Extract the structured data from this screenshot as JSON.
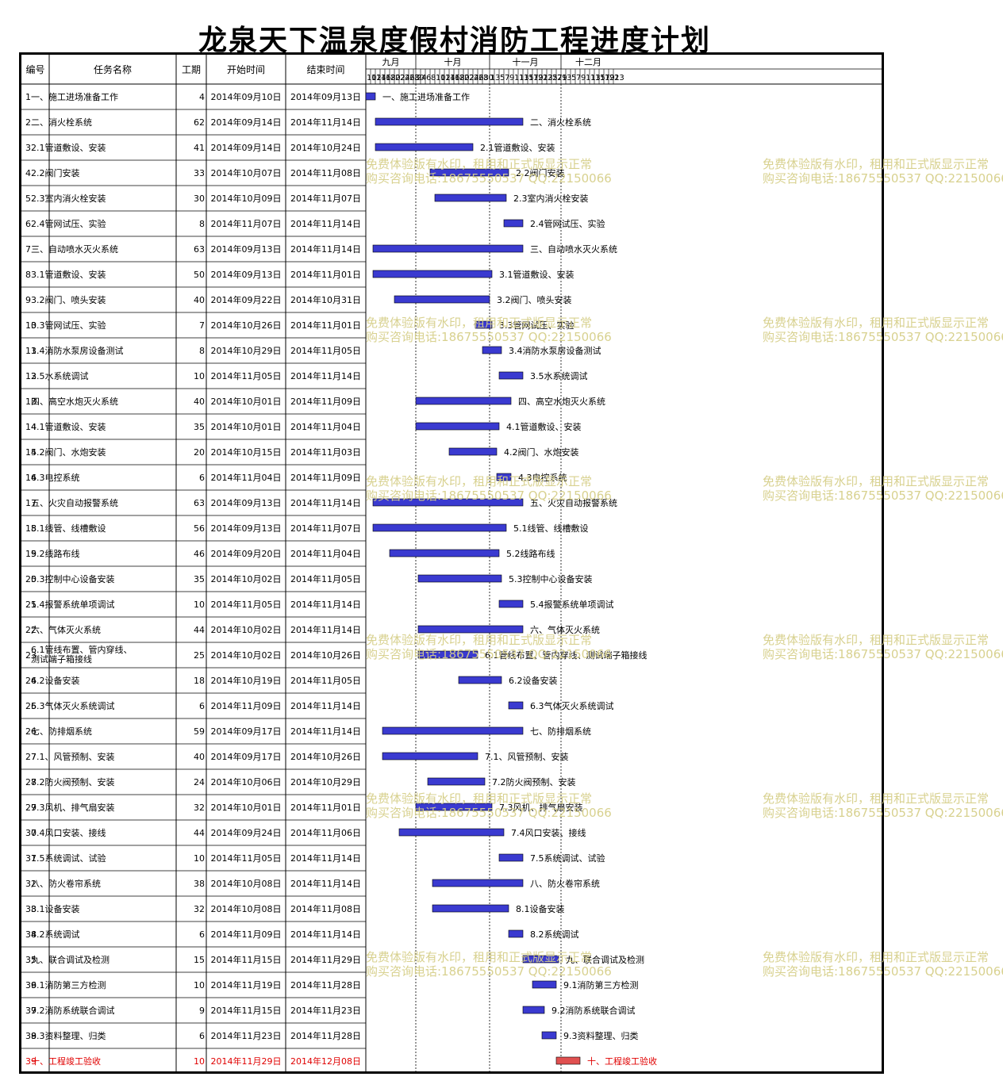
{
  "title": "龙泉天下温泉度假村消防工程进度计划",
  "headers": {
    "id": "编号",
    "name": "任务名称",
    "duration": "工期",
    "start": "开始时间",
    "end": "结束时间"
  },
  "months": [
    "九月",
    "十月",
    "十一月",
    "十二月"
  ],
  "day_ticks": {
    "sep": [
      "10",
      "12",
      "14",
      "16",
      "18",
      "20",
      "22",
      "24",
      "26",
      "28",
      "30"
    ],
    "oct": [
      "2",
      "4",
      "6",
      "8",
      "10",
      "12",
      "14",
      "16",
      "18",
      "20",
      "22",
      "24",
      "26",
      "28",
      "30"
    ],
    "nov": [
      "1",
      "3",
      "5",
      "7",
      "9",
      "11",
      "13",
      "15",
      "17",
      "19",
      "21",
      "23",
      "25",
      "27",
      "29"
    ],
    "dec": [
      "1",
      "3",
      "5",
      "7",
      "9",
      "11",
      "13",
      "15",
      "17",
      "19",
      "21",
      "23"
    ]
  },
  "watermark": {
    "line1": "免费体验版有水印，租用和正式版显示正常",
    "line2": "购买咨询电话:18675550537 QQ:22150066"
  },
  "colors": {
    "bar": "#3a3ad0",
    "bar_highlight": "#e05050",
    "highlight_text": "#e00000",
    "watermark": "#d6cf8a"
  },
  "chart_data": {
    "type": "gantt",
    "title": "龙泉天下温泉度假村消防工程进度计划",
    "x_axis": {
      "start": "2014-09-10",
      "end": "2014-12-23",
      "unit": "day"
    },
    "tasks": [
      {
        "id": "1",
        "name": "一、施工进场准备工作",
        "duration": "4",
        "start": "2014年09月10日",
        "end": "2014年09月13日",
        "s": "2014-09-10",
        "e": "2014-09-13"
      },
      {
        "id": "2",
        "name": "二、消火栓系统",
        "duration": "62",
        "start": "2014年09月14日",
        "end": "2014年11月14日",
        "s": "2014-09-14",
        "e": "2014-11-14"
      },
      {
        "id": "3",
        "name": "2.1管道敷设、安装",
        "duration": "41",
        "start": "2014年09月14日",
        "end": "2014年10月24日",
        "s": "2014-09-14",
        "e": "2014-10-24"
      },
      {
        "id": "4",
        "name": "2.2阀门安装",
        "duration": "33",
        "start": "2014年10月07日",
        "end": "2014年11月08日",
        "s": "2014-10-07",
        "e": "2014-11-08"
      },
      {
        "id": "5",
        "name": "2.3室内消火栓安装",
        "duration": "30",
        "start": "2014年10月09日",
        "end": "2014年11月07日",
        "s": "2014-10-09",
        "e": "2014-11-07"
      },
      {
        "id": "6",
        "name": "2.4管网试压、实验",
        "duration": "8",
        "start": "2014年11月07日",
        "end": "2014年11月14日",
        "s": "2014-11-07",
        "e": "2014-11-14"
      },
      {
        "id": "7",
        "name": "三、自动喷水灭火系统",
        "duration": "63",
        "start": "2014年09月13日",
        "end": "2014年11月14日",
        "s": "2014-09-13",
        "e": "2014-11-14"
      },
      {
        "id": "8",
        "name": "3.1管道敷设、安装",
        "duration": "50",
        "start": "2014年09月13日",
        "end": "2014年11月01日",
        "s": "2014-09-13",
        "e": "2014-11-01"
      },
      {
        "id": "9",
        "name": "3.2阀门、喷头安装",
        "duration": "40",
        "start": "2014年09月22日",
        "end": "2014年10月31日",
        "s": "2014-09-22",
        "e": "2014-10-31"
      },
      {
        "id": "10",
        "name": "3.3管网试压、实验",
        "duration": "7",
        "start": "2014年10月26日",
        "end": "2014年11月01日",
        "s": "2014-10-26",
        "e": "2014-11-01"
      },
      {
        "id": "11",
        "name": "3.4消防水泵房设备测试",
        "duration": "8",
        "start": "2014年10月29日",
        "end": "2014年11月05日",
        "s": "2014-10-29",
        "e": "2014-11-05"
      },
      {
        "id": "12",
        "name": "3.5水系统调试",
        "duration": "10",
        "start": "2014年11月05日",
        "end": "2014年11月14日",
        "s": "2014-11-05",
        "e": "2014-11-14"
      },
      {
        "id": "13",
        "name": "四、高空水炮灭火系统",
        "duration": "40",
        "start": "2014年10月01日",
        "end": "2014年11月09日",
        "s": "2014-10-01",
        "e": "2014-11-09"
      },
      {
        "id": "14",
        "name": "4.1管道敷设、安装",
        "duration": "35",
        "start": "2014年10月01日",
        "end": "2014年11月04日",
        "s": "2014-10-01",
        "e": "2014-11-04"
      },
      {
        "id": "15",
        "name": "4.2阀门、水炮安装",
        "duration": "20",
        "start": "2014年10月15日",
        "end": "2014年11月03日",
        "s": "2014-10-15",
        "e": "2014-11-03"
      },
      {
        "id": "16",
        "name": "4.3电控系统",
        "duration": "6",
        "start": "2014年11月04日",
        "end": "2014年11月09日",
        "s": "2014-11-04",
        "e": "2014-11-09"
      },
      {
        "id": "17",
        "name": "五、火灾自动报警系统",
        "duration": "63",
        "start": "2014年09月13日",
        "end": "2014年11月14日",
        "s": "2014-09-13",
        "e": "2014-11-14"
      },
      {
        "id": "18",
        "name": "5.1线管、线槽敷设",
        "duration": "56",
        "start": "2014年09月13日",
        "end": "2014年11月07日",
        "s": "2014-09-13",
        "e": "2014-11-07"
      },
      {
        "id": "19",
        "name": "5.2线路布线",
        "duration": "46",
        "start": "2014年09月20日",
        "end": "2014年11月04日",
        "s": "2014-09-20",
        "e": "2014-11-04"
      },
      {
        "id": "20",
        "name": "5.3控制中心设备安装",
        "duration": "35",
        "start": "2014年10月02日",
        "end": "2014年11月05日",
        "s": "2014-10-02",
        "e": "2014-11-05"
      },
      {
        "id": "21",
        "name": "5.4报警系统单项调试",
        "duration": "10",
        "start": "2014年11月05日",
        "end": "2014年11月14日",
        "s": "2014-11-05",
        "e": "2014-11-14"
      },
      {
        "id": "22",
        "name": "六、气体灭火系统",
        "duration": "44",
        "start": "2014年10月02日",
        "end": "2014年11月14日",
        "s": "2014-10-02",
        "e": "2014-11-14"
      },
      {
        "id": "23",
        "name": "6.1管线布置、管内穿线、测试端子箱接线",
        "name_line1": "6.1管线布置、管内穿线、",
        "name_line2": "测试端子箱接线",
        "duration": "25",
        "start": "2014年10月02日",
        "end": "2014年10月26日",
        "s": "2014-10-02",
        "e": "2014-10-26"
      },
      {
        "id": "24",
        "name": "6.2设备安装",
        "duration": "18",
        "start": "2014年10月19日",
        "end": "2014年11月05日",
        "s": "2014-10-19",
        "e": "2014-11-05"
      },
      {
        "id": "25",
        "name": "6.3气体灭火系统调试",
        "duration": "6",
        "start": "2014年11月09日",
        "end": "2014年11月14日",
        "s": "2014-11-09",
        "e": "2014-11-14"
      },
      {
        "id": "26",
        "name": "七、防排烟系统",
        "duration": "59",
        "start": "2014年09月17日",
        "end": "2014年11月14日",
        "s": "2014-09-17",
        "e": "2014-11-14"
      },
      {
        "id": "27",
        "name": "7.1、风管预制、安装",
        "duration": "40",
        "start": "2014年09月17日",
        "end": "2014年10月26日",
        "s": "2014-09-17",
        "e": "2014-10-26"
      },
      {
        "id": "28",
        "name": "7.2防火阀预制、安装",
        "duration": "24",
        "start": "2014年10月06日",
        "end": "2014年10月29日",
        "s": "2014-10-06",
        "e": "2014-10-29"
      },
      {
        "id": "29",
        "name": "7.3风机、排气扇安装",
        "duration": "32",
        "start": "2014年10月01日",
        "end": "2014年11月01日",
        "s": "2014-10-01",
        "e": "2014-11-01"
      },
      {
        "id": "30",
        "name": "7.4风口安装、接线",
        "duration": "44",
        "start": "2014年09月24日",
        "end": "2014年11月06日",
        "s": "2014-09-24",
        "e": "2014-11-06"
      },
      {
        "id": "31",
        "name": "7.5系统调试、试验",
        "duration": "10",
        "start": "2014年11月05日",
        "end": "2014年11月14日",
        "s": "2014-11-05",
        "e": "2014-11-14"
      },
      {
        "id": "32",
        "name": "八、防火卷帘系统",
        "duration": "38",
        "start": "2014年10月08日",
        "end": "2014年11月14日",
        "s": "2014-10-08",
        "e": "2014-11-14"
      },
      {
        "id": "33",
        "name": "8.1设备安装",
        "duration": "32",
        "start": "2014年10月08日",
        "end": "2014年11月08日",
        "s": "2014-10-08",
        "e": "2014-11-08"
      },
      {
        "id": "34",
        "name": "8.2系统调试",
        "duration": "6",
        "start": "2014年11月09日",
        "end": "2014年11月14日",
        "s": "2014-11-09",
        "e": "2014-11-14"
      },
      {
        "id": "35",
        "name": "九、联合调试及检测",
        "duration": "15",
        "start": "2014年11月15日",
        "end": "2014年11月29日",
        "s": "2014-11-15",
        "e": "2014-11-29"
      },
      {
        "id": "36",
        "name": "9.1消防第三方检测",
        "duration": "10",
        "start": "2014年11月19日",
        "end": "2014年11月28日",
        "s": "2014-11-19",
        "e": "2014-11-28"
      },
      {
        "id": "37",
        "name": "9.2消防系统联合调试",
        "duration": "9",
        "start": "2014年11月15日",
        "end": "2014年11月23日",
        "s": "2014-11-15",
        "e": "2014-11-23"
      },
      {
        "id": "38",
        "name": "9.3资料整理、归类",
        "duration": "6",
        "start": "2014年11月23日",
        "end": "2014年11月28日",
        "s": "2014-11-23",
        "e": "2014-11-28"
      },
      {
        "id": "39",
        "name": "十、工程竣工验收",
        "duration": "10",
        "start": "2014年11月29日",
        "end": "2014年12月08日",
        "s": "2014-11-29",
        "e": "2014-12-08",
        "highlight": true
      }
    ]
  }
}
